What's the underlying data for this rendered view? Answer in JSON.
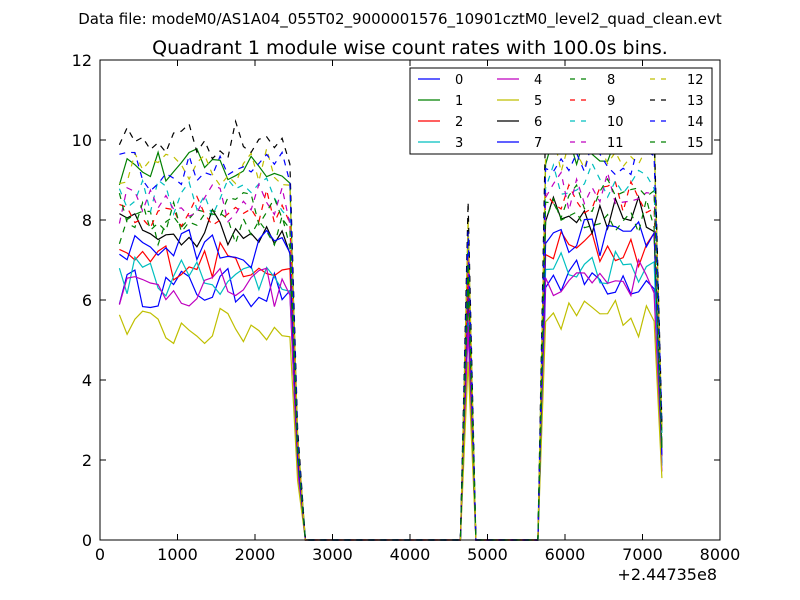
{
  "chart_data": {
    "type": "line",
    "suptitle": "Data file: modeM0/AS1A04_055T02_9000001576_10901cztM0_level2_quad_clean.evt",
    "title": "Quadrant 1 module wise count rates with 100.0s bins.",
    "xlabel": "",
    "ylabel": "",
    "x_offset_label": "+2.44735e8",
    "xlim": [
      0,
      8000
    ],
    "ylim": [
      0,
      12
    ],
    "x_ticks": [
      0,
      1000,
      2000,
      3000,
      4000,
      5000,
      6000,
      7000,
      8000
    ],
    "y_ticks": [
      0,
      2,
      4,
      6,
      8,
      10,
      12
    ],
    "legend_position": "top-right",
    "legend_columns": 4,
    "x": [
      250,
      350,
      450,
      550,
      650,
      750,
      850,
      950,
      1050,
      1150,
      1250,
      1350,
      1450,
      1550,
      1650,
      1750,
      1850,
      1950,
      2050,
      2150,
      2250,
      2350,
      2450,
      2550,
      2650,
      2750,
      2850,
      2950,
      3050,
      3150,
      3250,
      3350,
      3450,
      3550,
      3650,
      3750,
      3850,
      3950,
      4050,
      4150,
      4250,
      4350,
      4450,
      4550,
      4650,
      4750,
      4850,
      4950,
      5050,
      5150,
      5250,
      5350,
      5450,
      5550,
      5650,
      5750,
      5850,
      5950,
      6050,
      6150,
      6250,
      6350,
      6450,
      6550,
      6650,
      6750,
      6850,
      6950,
      7050,
      7150,
      7250
    ],
    "series": [
      {
        "name": "0",
        "color": "#0000ff",
        "dash": "solid",
        "base": 6.3
      },
      {
        "name": "1",
        "color": "#008000",
        "dash": "solid",
        "base": 9.3
      },
      {
        "name": "2",
        "color": "#ff0000",
        "dash": "solid",
        "base": 7.0
      },
      {
        "name": "3",
        "color": "#00bfbf",
        "dash": "solid",
        "base": 6.6
      },
      {
        "name": "4",
        "color": "#bf00bf",
        "dash": "solid",
        "base": 6.3
      },
      {
        "name": "5",
        "color": "#bfbf00",
        "dash": "solid",
        "base": 5.3
      },
      {
        "name": "6",
        "color": "#000000",
        "dash": "solid",
        "base": 7.8
      },
      {
        "name": "7",
        "color": "#0000ff",
        "dash": "solid",
        "base": 7.3
      },
      {
        "name": "8",
        "color": "#008000",
        "dash": "dashed",
        "base": 7.8
      },
      {
        "name": "9",
        "color": "#ff0000",
        "dash": "dashed",
        "base": 8.3
      },
      {
        "name": "10",
        "color": "#00bfbf",
        "dash": "dashed",
        "base": 8.6
      },
      {
        "name": "11",
        "color": "#bf00bf",
        "dash": "dashed",
        "base": 8.4
      },
      {
        "name": "12",
        "color": "#bfbf00",
        "dash": "dashed",
        "base": 9.3
      },
      {
        "name": "13",
        "color": "#000000",
        "dash": "dashed",
        "base": 10.0
      },
      {
        "name": "14",
        "color": "#0000ff",
        "dash": "dashed",
        "base": 9.2
      },
      {
        "name": "15",
        "color": "#008000",
        "dash": "dashed",
        "base": 8.2
      }
    ]
  }
}
